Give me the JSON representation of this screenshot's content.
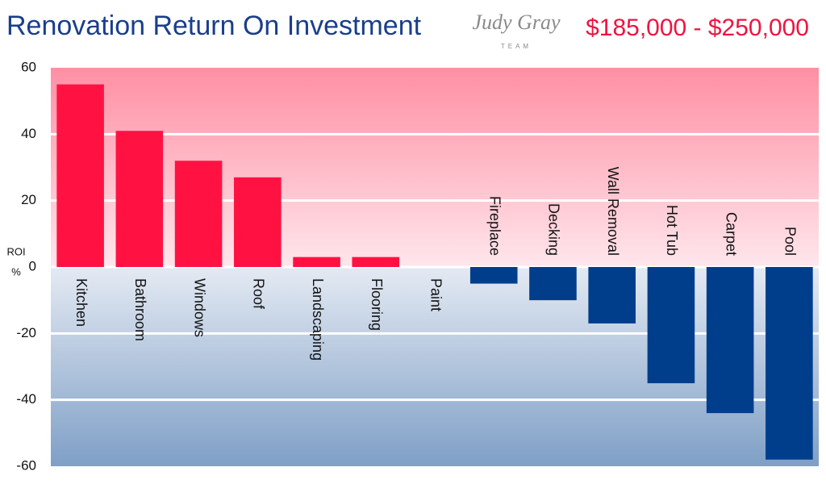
{
  "chart_data": {
    "type": "bar",
    "title": "Renovation Return On Investment",
    "subtitle": "$185,000 - $250,000",
    "logo": "Judy Gray",
    "logo_sub": "TEAM",
    "y_label": "ROI",
    "y_label_unit": "%",
    "categories": [
      "Kitchen",
      "Bathroom",
      "Windows",
      "Roof",
      "Landscaping",
      "Flooring",
      "Paint",
      "Fireplace",
      "Decking",
      "Wall Removal",
      "Hot Tub",
      "Carpet",
      "Pool"
    ],
    "values": [
      55,
      41,
      32,
      27,
      3,
      3,
      0,
      -5,
      -10,
      -17,
      -35,
      -44,
      -58
    ],
    "positive_color": "#ff1242",
    "negative_color": "#003e8c",
    "ylim": [
      -60,
      60
    ],
    "yticks": [
      -60,
      -40,
      -20,
      0,
      20,
      40,
      60
    ],
    "grid": true
  }
}
